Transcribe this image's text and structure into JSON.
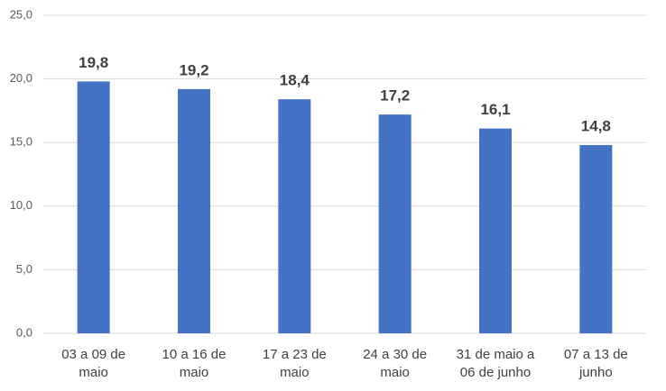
{
  "chart_data": {
    "type": "bar",
    "categories": [
      "03 a 09 de maio",
      "10 a 16 de maio",
      "17 a 23 de maio",
      "24 a 30 de maio",
      "31 de maio a 06 de junho",
      "07 a 13 de junho"
    ],
    "values": [
      19.8,
      19.2,
      18.4,
      17.2,
      16.1,
      14.8
    ],
    "value_labels": [
      "19,8",
      "19,2",
      "18,4",
      "17,2",
      "16,1",
      "14,8"
    ],
    "color": "#4472c4",
    "ylim": [
      0,
      25
    ],
    "yticks": [
      {
        "value": 0,
        "label": "0,0"
      },
      {
        "value": 5,
        "label": "5,0"
      },
      {
        "value": 10,
        "label": "10,0"
      },
      {
        "value": 15,
        "label": "15,0"
      },
      {
        "value": 20,
        "label": "20,0"
      },
      {
        "value": 25,
        "label": "25,0"
      }
    ],
    "grid": true
  }
}
